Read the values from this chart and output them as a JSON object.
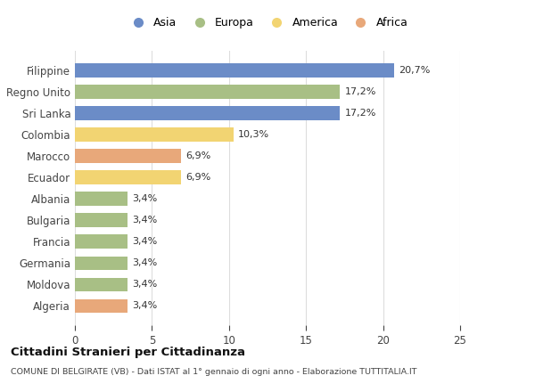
{
  "categories": [
    "Filippine",
    "Regno Unito",
    "Sri Lanka",
    "Colombia",
    "Marocco",
    "Ecuador",
    "Albania",
    "Bulgaria",
    "Francia",
    "Germania",
    "Moldova",
    "Algeria"
  ],
  "values": [
    20.7,
    17.2,
    17.2,
    10.3,
    6.9,
    6.9,
    3.4,
    3.4,
    3.4,
    3.4,
    3.4,
    3.4
  ],
  "labels": [
    "20,7%",
    "17,2%",
    "17,2%",
    "10,3%",
    "6,9%",
    "6,9%",
    "3,4%",
    "3,4%",
    "3,4%",
    "3,4%",
    "3,4%",
    "3,4%"
  ],
  "colors": [
    "#6b8cc7",
    "#a8bf85",
    "#6b8cc7",
    "#f2d472",
    "#e8a87a",
    "#f2d472",
    "#a8bf85",
    "#a8bf85",
    "#a8bf85",
    "#a8bf85",
    "#a8bf85",
    "#e8a87a"
  ],
  "legend_labels": [
    "Asia",
    "Europa",
    "America",
    "Africa"
  ],
  "legend_colors": [
    "#6b8cc7",
    "#a8bf85",
    "#f2d472",
    "#e8a87a"
  ],
  "xlim": [
    0,
    25
  ],
  "xticks": [
    0,
    5,
    10,
    15,
    20,
    25
  ],
  "title": "Cittadini Stranieri per Cittadinanza",
  "subtitle": "COMUNE DI BELGIRATE (VB) - Dati ISTAT al 1° gennaio di ogni anno - Elaborazione TUTTITALIA.IT",
  "bg_color": "#ffffff",
  "bar_height": 0.65
}
